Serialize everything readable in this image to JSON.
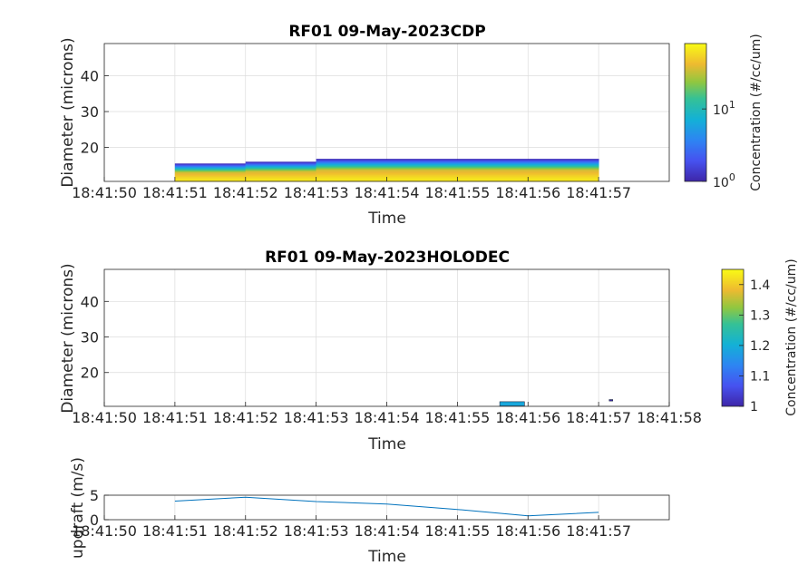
{
  "chart_data": [
    {
      "type": "heatmap",
      "title": "RF01 09-May-2023CDP",
      "xlabel": "Time",
      "ylabel": "Diameter (microns)",
      "xlim": [
        0,
        8
      ],
      "ylim": [
        10.5,
        49
      ],
      "x_ticks": [
        0,
        1,
        2,
        3,
        4,
        5,
        6,
        7
      ],
      "x_tick_labels": [
        "18:41:50",
        "18:41:51",
        "18:41:52",
        "18:41:53",
        "18:41:54",
        "18:41:55",
        "18:41:56",
        "18:41:57"
      ],
      "y_ticks": [
        20,
        30,
        40
      ],
      "grid": true,
      "x": [
        1,
        2,
        3,
        4,
        5,
        6,
        7
      ],
      "bin_top_diameter": [
        15.5,
        16,
        16.8,
        16.8,
        17,
        16.8,
        16.8
      ],
      "colorbar": {
        "label": "Concentration (#/cc/um)",
        "scale": "log",
        "range": [
          1,
          80
        ],
        "tick_base": "10",
        "tick_exponents": [
          "0",
          "1"
        ],
        "tick_values": [
          1,
          10
        ]
      }
    },
    {
      "type": "heatmap",
      "title": "RF01 09-May-2023HOLODEC",
      "xlabel": "Time",
      "ylabel": "Diameter (microns)",
      "xlim": [
        0,
        8
      ],
      "ylim": [
        10.5,
        49
      ],
      "x_ticks": [
        0,
        1,
        2,
        3,
        4,
        5,
        6,
        7,
        8
      ],
      "x_tick_labels": [
        "18:41:50",
        "18:41:51",
        "18:41:52",
        "18:41:53",
        "18:41:54",
        "18:41:55",
        "18:41:56",
        "18:41:57",
        "18:41:58"
      ],
      "y_ticks": [
        20,
        30,
        40
      ],
      "grid": true,
      "patches": [
        {
          "x0": 5.6,
          "x1": 5.95,
          "y0": 10.6,
          "y1": 11.8,
          "value": 1.18
        },
        {
          "x0": 7.15,
          "x1": 7.2,
          "y0": 12.0,
          "y1": 12.4,
          "value": 1.0
        }
      ],
      "colorbar": {
        "label": "Concentration (#/cc/um)",
        "scale": "linear",
        "range": [
          1,
          1.45
        ],
        "tick_labels": [
          "1",
          "1.1",
          "1.2",
          "1.3",
          "1.4"
        ],
        "tick_values": [
          1,
          1.1,
          1.2,
          1.3,
          1.4
        ]
      }
    },
    {
      "type": "line",
      "xlabel": "Time",
      "ylabel": "updraft (m/s)",
      "xlim": [
        0,
        8
      ],
      "ylim": [
        0,
        5
      ],
      "x_ticks": [
        0,
        1,
        2,
        3,
        4,
        5,
        6,
        7
      ],
      "x_tick_labels": [
        "18:41:50",
        "18:41:51",
        "18:41:52",
        "18:41:53",
        "18:41:54",
        "18:41:55",
        "18:41:56",
        "18:41:57"
      ],
      "y_ticks": [
        0,
        5
      ],
      "y_tick_labels": [
        "0",
        "5"
      ],
      "grid": true,
      "x": [
        1,
        2,
        3,
        4,
        5,
        6,
        7
      ],
      "y": [
        3.8,
        4.6,
        3.7,
        3.2,
        2.1,
        0.8,
        1.5
      ]
    }
  ]
}
